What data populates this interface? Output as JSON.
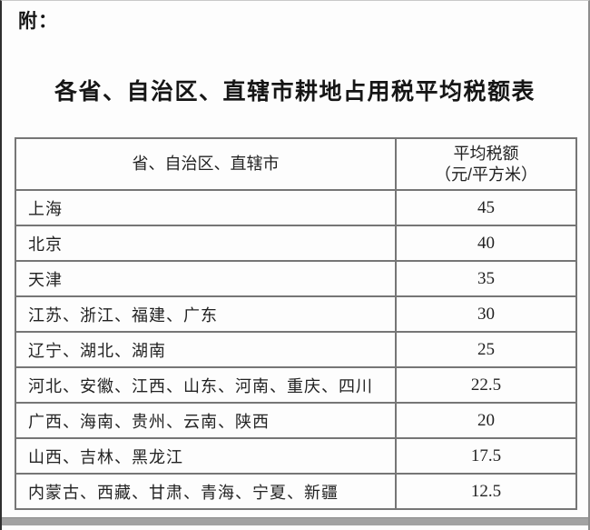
{
  "page": {
    "attachment_label": "附：",
    "title": "各省、自治区、直辖市耕地占用税平均税额表"
  },
  "table": {
    "headers": {
      "region": "省、自治区、直辖市",
      "tax_line1": "平均税额",
      "tax_line2": "（元/平方米）"
    },
    "rows": [
      {
        "regions": "上海",
        "tax": "45"
      },
      {
        "regions": "北京",
        "tax": "40"
      },
      {
        "regions": "天津",
        "tax": "35"
      },
      {
        "regions": "江苏、浙江、福建、广东",
        "tax": "30"
      },
      {
        "regions": "辽宁、湖北、湖南",
        "tax": "25"
      },
      {
        "regions": "河北、安徽、江西、山东、河南、重庆、四川",
        "tax": "22.5"
      },
      {
        "regions": "广西、海南、贵州、云南、陕西",
        "tax": "20"
      },
      {
        "regions": "山西、吉林、黑龙江",
        "tax": "17.5"
      },
      {
        "regions": "内蒙古、西藏、甘肃、青海、宁夏、新疆",
        "tax": "12.5"
      }
    ]
  },
  "colors": {
    "text": "#1f1f1f",
    "table_border": "#767676",
    "scan_edge": "#a2a2a2"
  }
}
